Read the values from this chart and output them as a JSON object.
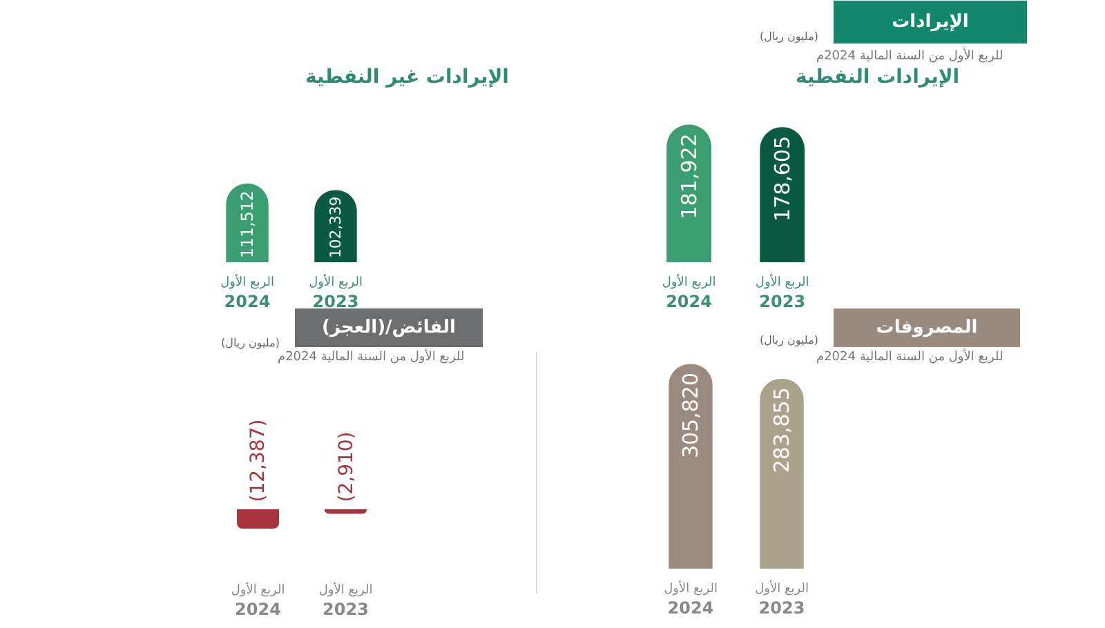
{
  "chart_data": [
    {
      "type": "bar",
      "title": "الإيرادات النفطية",
      "subtitle": "للربع الأول من السنة المالية 2024م",
      "annotations": [
        "(مليون ريال)",
        "الإيرادات"
      ],
      "categories": [
        "الربع الأول\n2024",
        "الربع الأول\n2023"
      ],
      "values": [
        181922,
        178605
      ],
      "colors": [
        "#3a9e72",
        "#0b5a44"
      ],
      "value_labels": [
        "181,922",
        "178,605"
      ],
      "tick_labels": "x"
    },
    {
      "type": "bar",
      "title": "الإيرادات غير النفطية",
      "categories": [
        "الربع الأول\n2024",
        "الربع الأول\n2023"
      ],
      "values": [
        111512,
        102339
      ],
      "colors": [
        "#3a9e72",
        "#0b5a44"
      ],
      "value_labels": [
        "111,512",
        "102,339"
      ],
      "tick_labels": "x"
    },
    {
      "type": "bar",
      "subtitle": "للربع الأول من السنة المالية 2024م",
      "annotations": [
        "(مليون ريال)",
        "المصروفات"
      ],
      "categories": [
        "الربع الأول\n2024",
        "الربع الأول\n2023"
      ],
      "values": [
        305820,
        283855
      ],
      "colors": [
        "#9b8b7f",
        "#aaa38b"
      ],
      "value_labels": [
        "305,820",
        "283,855"
      ],
      "tick_labels": "x"
    },
    {
      "type": "bar",
      "title": "الفائض/(العجز)",
      "subtitle": "للربع الأول من السنة المالية 2024م",
      "annotations": [
        "(مليون ريال)"
      ],
      "categories": [
        "الربع الأول\n2024",
        "الربع الأول\n2023"
      ],
      "values": [
        -12387,
        -2910
      ],
      "colors": [
        "#a8343c",
        "#a8343c"
      ],
      "value_labels": [
        "(12,387)",
        "(2,910)"
      ],
      "tick_labels": "x"
    }
  ]
}
